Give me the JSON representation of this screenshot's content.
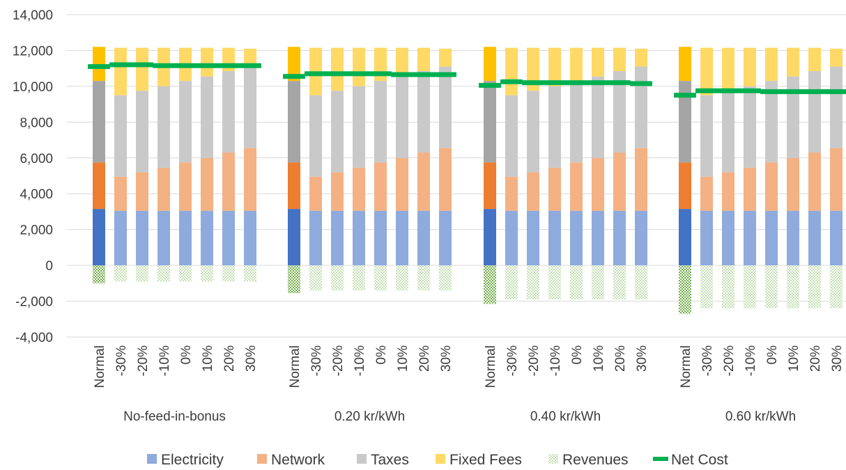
{
  "chart_data": {
    "type": "bar",
    "stacked": true,
    "ylim": [
      -4000,
      14000
    ],
    "yticks": [
      14000,
      12000,
      10000,
      8000,
      6000,
      4000,
      2000,
      0,
      -2000,
      -4000
    ],
    "ytick_labels": [
      "14,000",
      "12,000",
      "10,000",
      "8,000",
      "6,000",
      "4,000",
      "2,000",
      "0",
      "-2,000",
      "-4,000"
    ],
    "grid": true,
    "legend_position": "bottom",
    "categories": [
      "Normal",
      "-30%",
      "-20%",
      "-10%",
      "0%",
      "10%",
      "20%",
      "30%"
    ],
    "groups": [
      {
        "name": "No-feed-in-bonus",
        "electricity": [
          3150,
          3050,
          3050,
          3050,
          3050,
          3050,
          3050,
          3050
        ],
        "network": [
          2600,
          1900,
          2150,
          2400,
          2700,
          2950,
          3250,
          3500
        ],
        "taxes": [
          4550,
          4550,
          4550,
          4550,
          4550,
          4550,
          4550,
          4550
        ],
        "fixed_fees": [
          1900,
          2650,
          2400,
          2150,
          1850,
          1600,
          1300,
          1000
        ],
        "revenues": [
          -1000,
          -900,
          -900,
          -900,
          -900,
          -900,
          -900,
          -900
        ],
        "net_cost": [
          11100,
          11200,
          11200,
          11150,
          11150,
          11150,
          11150,
          11150
        ]
      },
      {
        "name": "0.20 kr/kWh",
        "electricity": [
          3150,
          3050,
          3050,
          3050,
          3050,
          3050,
          3050,
          3050
        ],
        "network": [
          2600,
          1900,
          2150,
          2400,
          2700,
          2950,
          3250,
          3500
        ],
        "taxes": [
          4550,
          4550,
          4550,
          4550,
          4550,
          4550,
          4550,
          4550
        ],
        "fixed_fees": [
          1900,
          2650,
          2400,
          2150,
          1850,
          1600,
          1300,
          1000
        ],
        "revenues": [
          -1550,
          -1400,
          -1400,
          -1400,
          -1400,
          -1400,
          -1400,
          -1400
        ],
        "net_cost": [
          10550,
          10700,
          10700,
          10700,
          10700,
          10650,
          10650,
          10650
        ]
      },
      {
        "name": "0.40 kr/kWh",
        "electricity": [
          3150,
          3050,
          3050,
          3050,
          3050,
          3050,
          3050,
          3050
        ],
        "network": [
          2600,
          1900,
          2150,
          2400,
          2700,
          2950,
          3250,
          3500
        ],
        "taxes": [
          4550,
          4550,
          4550,
          4550,
          4550,
          4550,
          4550,
          4550
        ],
        "fixed_fees": [
          1900,
          2650,
          2400,
          2150,
          1850,
          1600,
          1300,
          1000
        ],
        "revenues": [
          -2150,
          -1900,
          -1900,
          -1900,
          -1900,
          -1900,
          -1900,
          -1900
        ],
        "net_cost": [
          10050,
          10250,
          10200,
          10200,
          10200,
          10200,
          10200,
          10150
        ]
      },
      {
        "name": "0.60 kr/kWh",
        "electricity": [
          3150,
          3050,
          3050,
          3050,
          3050,
          3050,
          3050,
          3050
        ],
        "network": [
          2600,
          1900,
          2150,
          2400,
          2700,
          2950,
          3250,
          3500
        ],
        "taxes": [
          4550,
          4550,
          4550,
          4550,
          4550,
          4550,
          4550,
          4550
        ],
        "fixed_fees": [
          1900,
          2650,
          2400,
          2150,
          1850,
          1600,
          1300,
          1000
        ],
        "revenues": [
          -2700,
          -2400,
          -2400,
          -2400,
          -2400,
          -2400,
          -2400,
          -2400
        ],
        "net_cost": [
          9500,
          9750,
          9750,
          9750,
          9700,
          9700,
          9700,
          9700
        ]
      }
    ],
    "legend": [
      {
        "key": "electricity",
        "name": "Electricity"
      },
      {
        "key": "network",
        "name": "Network"
      },
      {
        "key": "taxes",
        "name": "Taxes"
      },
      {
        "key": "fixed_fees",
        "name": "Fixed Fees"
      },
      {
        "key": "revenues",
        "name": "Revenues"
      },
      {
        "key": "net_cost",
        "name": "Net Cost"
      }
    ],
    "colors": {
      "electricity_normal": "#4472c4",
      "electricity_light": "#8faadc",
      "network_normal": "#ed7d31",
      "network_light": "#f4b183",
      "taxes_normal": "#a5a5a5",
      "taxes_light": "#c9c9c9",
      "fixed_fees_normal": "#ffc000",
      "fixed_fees_light": "#ffd966",
      "revenues_normal": "#70ad47",
      "revenues_light": "#c5e0b4",
      "net_cost": "#00b050",
      "grid": "#d9d9d9",
      "text": "#3b3b3b"
    }
  }
}
